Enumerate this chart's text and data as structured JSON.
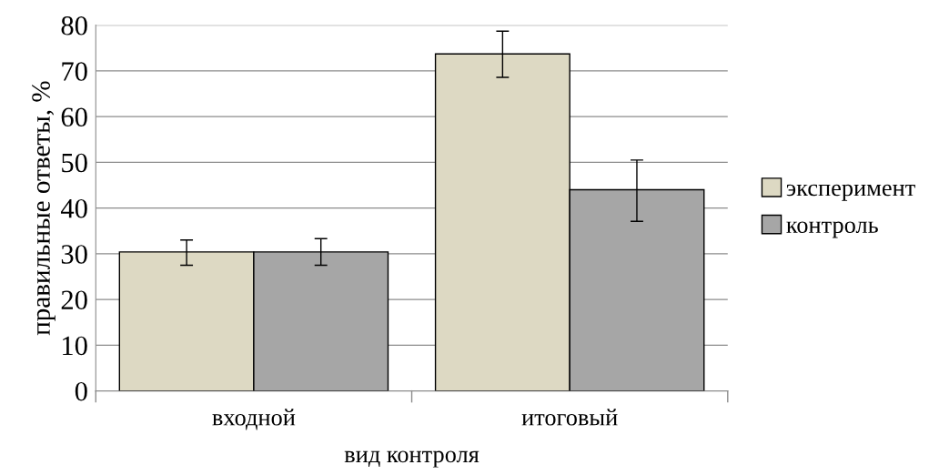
{
  "chart_data": {
    "type": "bar",
    "xlabel": "вид контроля",
    "ylabel": "правильные ответы, %",
    "categories": [
      "входной",
      "итоговый"
    ],
    "series": [
      {
        "name": "эксперимент",
        "color": "#ddd9c3",
        "values": [
          30.4,
          73.7
        ],
        "errors": [
          [
            27.5,
            33.0
          ],
          [
            68.6,
            78.7
          ]
        ]
      },
      {
        "name": "контроль",
        "color": "#a6a6a6",
        "values": [
          30.4,
          44.0
        ],
        "errors": [
          [
            27.5,
            33.3
          ],
          [
            37.1,
            50.5
          ]
        ]
      }
    ],
    "ylim": [
      0,
      80
    ],
    "yticks": [
      0,
      10,
      20,
      30,
      40,
      50,
      60,
      70,
      80
    ],
    "grid": "y",
    "legend": "right"
  }
}
